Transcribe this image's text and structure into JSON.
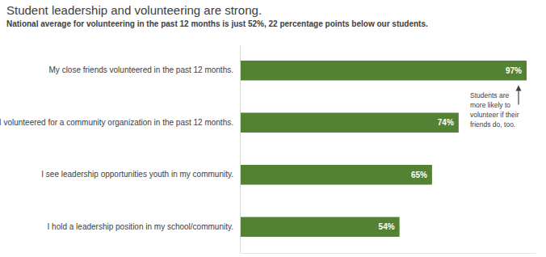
{
  "chart_data": {
    "type": "bar",
    "orientation": "horizontal",
    "title": "Student leadership and volunteering are strong.",
    "subtitle": "National average for volunteering in the past 12 months is just 52%, 22 percentage points below our students.",
    "categories": [
      "My close friends volunteered in the past 12 months.",
      "I volunteered for a community organization in the past 12 months.",
      "I see leadership opportunities youth in my community.",
      "I hold a leadership position in my school/community."
    ],
    "values": [
      97,
      74,
      65,
      54
    ],
    "value_labels": [
      "97%",
      "74%",
      "65%",
      "54%"
    ],
    "color": "#548235",
    "xlim": [
      0,
      100
    ],
    "data_labels": true,
    "tick_labels": "y",
    "grid": false,
    "annotation": [
      "Students are",
      "more likely to",
      "volunteer if their",
      "friends do, too."
    ]
  }
}
